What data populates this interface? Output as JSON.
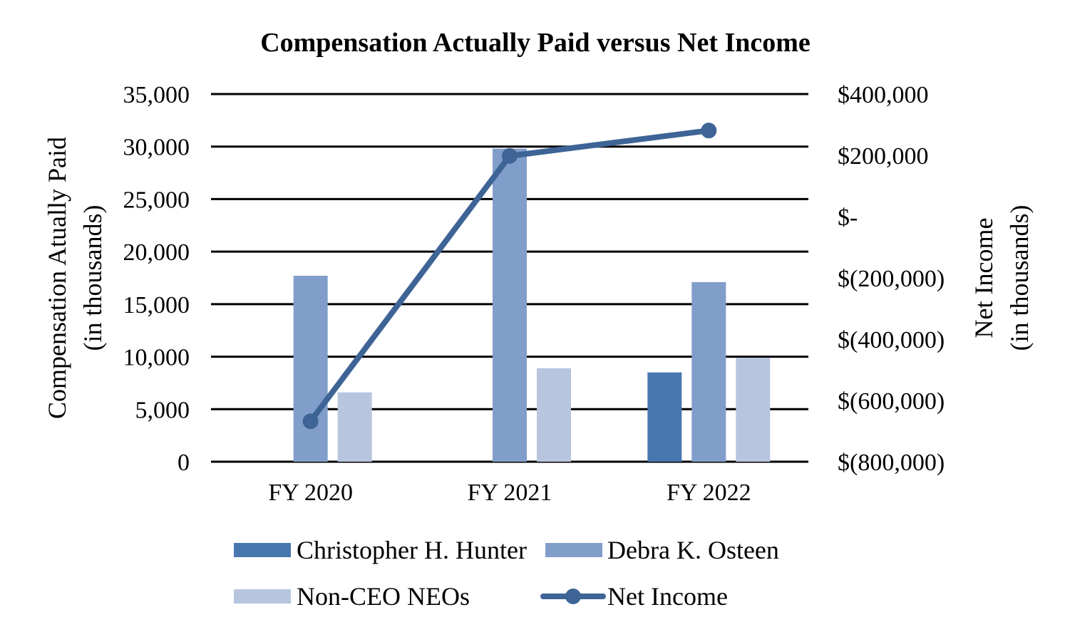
{
  "chart_data": {
    "type": "bar",
    "title": "Compensation Actually Paid versus Net Income",
    "categories": [
      "FY 2020",
      "FY 2021",
      "FY 2022"
    ],
    "ylabel_left_line1": "Compensation Atually Paid",
    "ylabel_left_line2": "(in thousands)",
    "ylabel_right_line1": "Net Income",
    "ylabel_right_line2": "(in thousands)",
    "ylim_left": [
      0,
      35000
    ],
    "ylim_right": [
      -800000,
      400000
    ],
    "yticks_left": [
      "0",
      "5,000",
      "10,000",
      "15,000",
      "20,000",
      "25,000",
      "30,000",
      "35,000"
    ],
    "yticks_left_values": [
      0,
      5000,
      10000,
      15000,
      20000,
      25000,
      30000,
      35000
    ],
    "yticks_right": [
      "$(800,000)",
      "$(600,000)",
      "$(400,000)",
      "$(200,000)",
      "$-",
      "$200,000",
      "$400,000"
    ],
    "yticks_right_values": [
      -800000,
      -600000,
      -400000,
      -200000,
      0,
      200000,
      400000
    ],
    "grid": true,
    "legend_position": "bottom",
    "series": [
      {
        "name": "Christopher H. Hunter",
        "kind": "bar",
        "axis": "left",
        "color": "#4876AE",
        "values": [
          null,
          null,
          8500
        ]
      },
      {
        "name": "Debra K. Osteen",
        "kind": "bar",
        "axis": "left",
        "color": "#809EC9",
        "values": [
          17700,
          29800,
          17100
        ]
      },
      {
        "name": "Non-CEO NEOs",
        "kind": "bar",
        "axis": "left",
        "color": "#B7C5DF",
        "values": [
          6600,
          8900,
          9900
        ]
      },
      {
        "name": "Net Income",
        "kind": "line",
        "axis": "right",
        "color": "#3E6496",
        "values": [
          -668000,
          198000,
          281000
        ]
      }
    ]
  }
}
